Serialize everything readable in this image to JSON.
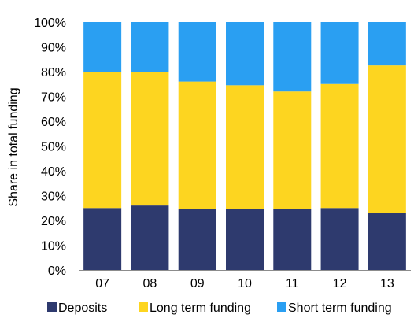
{
  "colors": {
    "Deposits": "#2e3a6e",
    "Long term funding": "#fdd520",
    "Short term funding": "#2a9ff2"
  },
  "chart_data": {
    "type": "bar",
    "stacked": true,
    "categories": [
      "07",
      "08",
      "09",
      "10",
      "11",
      "12",
      "13"
    ],
    "series": [
      {
        "name": "Deposits",
        "values": [
          25,
          26,
          24.5,
          24.5,
          24.5,
          25,
          23
        ]
      },
      {
        "name": "Long term funding",
        "values": [
          55,
          54,
          51.5,
          50,
          47.5,
          50,
          59.5
        ]
      },
      {
        "name": "Short term funding",
        "values": [
          20,
          20,
          24,
          25.5,
          28,
          25,
          17.5
        ]
      }
    ],
    "title": "",
    "xlabel": "",
    "ylabel": "Share in total funding",
    "ylim": [
      0,
      100
    ],
    "yticks": [
      "0%",
      "10%",
      "20%",
      "30%",
      "40%",
      "50%",
      "60%",
      "70%",
      "80%",
      "90%",
      "100%"
    ],
    "grid": false,
    "legend_position": "bottom"
  }
}
